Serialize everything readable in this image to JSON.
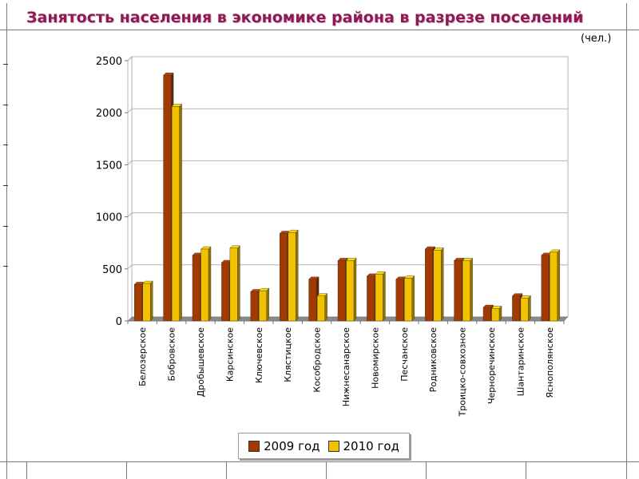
{
  "slide": {
    "title": "Занятость населения в экономике района в разрезе поселений",
    "unit": "(чел.)"
  },
  "colors": {
    "series_2009": "#a33a00",
    "series_2010": "#f2c200",
    "title": "#8e1a55"
  },
  "chart_data": {
    "type": "bar",
    "categories": [
      "Белозерское",
      "Бобровское",
      "Дробышевское",
      "Карсинское",
      "Ключевское",
      "Клястицкое",
      "Кособродское",
      "Нижнесанарское",
      "Новомирское",
      "Песчанское",
      "Родниковское",
      "Троицко-совхозное",
      "Черноречинское",
      "Шантаринское",
      "Яснополянское"
    ],
    "series": [
      {
        "name": "2009 год",
        "values": [
          350,
          2360,
          630,
          560,
          280,
          840,
          400,
          580,
          430,
          400,
          690,
          580,
          130,
          240,
          630
        ]
      },
      {
        "name": "2010 год",
        "values": [
          360,
          2060,
          690,
          700,
          290,
          850,
          240,
          580,
          450,
          410,
          680,
          580,
          120,
          220,
          660
        ]
      }
    ],
    "ylim": [
      0,
      2500
    ],
    "yticks": [
      "0",
      "500",
      "1000",
      "1500",
      "2000",
      "2500"
    ],
    "grid": true,
    "legend": "bottom",
    "title": "",
    "xlabel": "",
    "ylabel": ""
  }
}
